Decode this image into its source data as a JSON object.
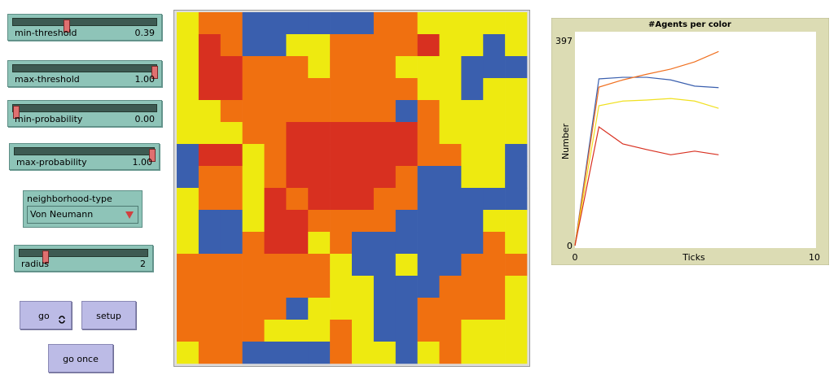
{
  "controls": {
    "sliders": [
      {
        "label": "min-threshold",
        "value": "0.39"
      },
      {
        "label": "max-threshold",
        "value": "1.00"
      },
      {
        "label": "min-probability",
        "value": "0.00"
      },
      {
        "label": "max-probability",
        "value": "1.00"
      },
      {
        "label": "radius",
        "value": "2"
      }
    ],
    "chooser": {
      "label": "neighborhood-type",
      "value": "Von Neumann"
    },
    "buttons": [
      "go",
      "setup",
      "go once"
    ]
  },
  "chart_data": {
    "type": "line",
    "title": "#Agents per color",
    "x_label": "Ticks",
    "y_label": "Number",
    "x": [
      0,
      1,
      2,
      3,
      4,
      5,
      6
    ],
    "series": [
      {
        "color": "#3a5fae",
        "values": [
          0,
          323,
          326,
          326,
          321,
          309,
          306
        ]
      },
      {
        "color": "#f07020",
        "values": [
          0,
          307,
          321,
          332,
          342,
          356,
          376
        ]
      },
      {
        "color": "#f0e020",
        "values": [
          0,
          271,
          280,
          282,
          285,
          280,
          266
        ]
      },
      {
        "color": "#d83020",
        "values": [
          0,
          230,
          197,
          186,
          176,
          183,
          176
        ]
      }
    ],
    "xlim": [
      0,
      10
    ],
    "ylim": [
      0,
      397
    ],
    "xticks": [
      0,
      10
    ],
    "yticks": [
      0,
      397
    ]
  }
}
